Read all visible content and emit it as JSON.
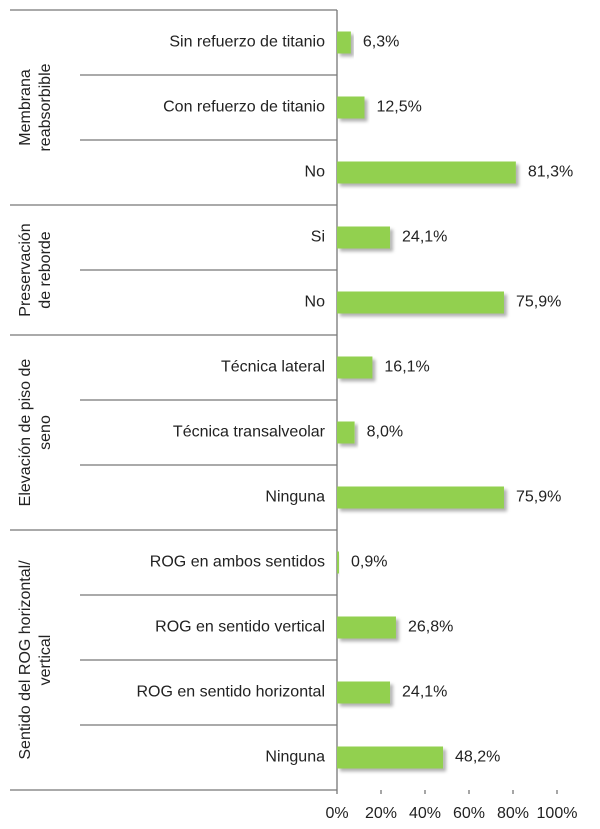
{
  "chart_data": {
    "type": "bar",
    "color": "#92d050",
    "xlim": [
      0,
      100
    ],
    "xticks": [
      {
        "value": 0,
        "label": "0%"
      },
      {
        "value": 20,
        "label": "20%"
      },
      {
        "value": 40,
        "label": "40%"
      },
      {
        "value": 60,
        "label": "60%"
      },
      {
        "value": 80,
        "label": "80%"
      },
      {
        "value": 100,
        "label": "100%"
      }
    ],
    "groups": [
      {
        "label": [
          "Membrana",
          "reabsorbible"
        ],
        "categories": [
          "Sin refuerzo de titanio",
          "Con refuerzo de titanio",
          "No"
        ],
        "values": [
          6.3,
          12.5,
          81.3
        ],
        "value_labels": [
          "6,3%",
          "12,5%",
          "81,3%"
        ]
      },
      {
        "label": [
          "Preservación",
          "de reborde"
        ],
        "categories": [
          "Si",
          "No"
        ],
        "values": [
          24.1,
          75.9
        ],
        "value_labels": [
          "24,1%",
          "75,9%"
        ]
      },
      {
        "label": [
          "Elevación de piso de",
          "seno"
        ],
        "categories": [
          "Técnica lateral",
          "Técnica transalveolar",
          "Ninguna"
        ],
        "values": [
          16.1,
          8.0,
          75.9
        ],
        "value_labels": [
          "16,1%",
          "8,0%",
          "75,9%"
        ]
      },
      {
        "label": [
          "Sentido del ROG horizontal/",
          "vertical"
        ],
        "categories": [
          "ROG en ambos sentidos",
          "ROG en sentido vertical",
          "ROG en sentido horizontal",
          "Ninguna"
        ],
        "values": [
          0.9,
          26.8,
          24.1,
          48.2
        ],
        "value_labels": [
          "0,9%",
          "26,8%",
          "24,1%",
          "48,2%"
        ]
      }
    ]
  }
}
